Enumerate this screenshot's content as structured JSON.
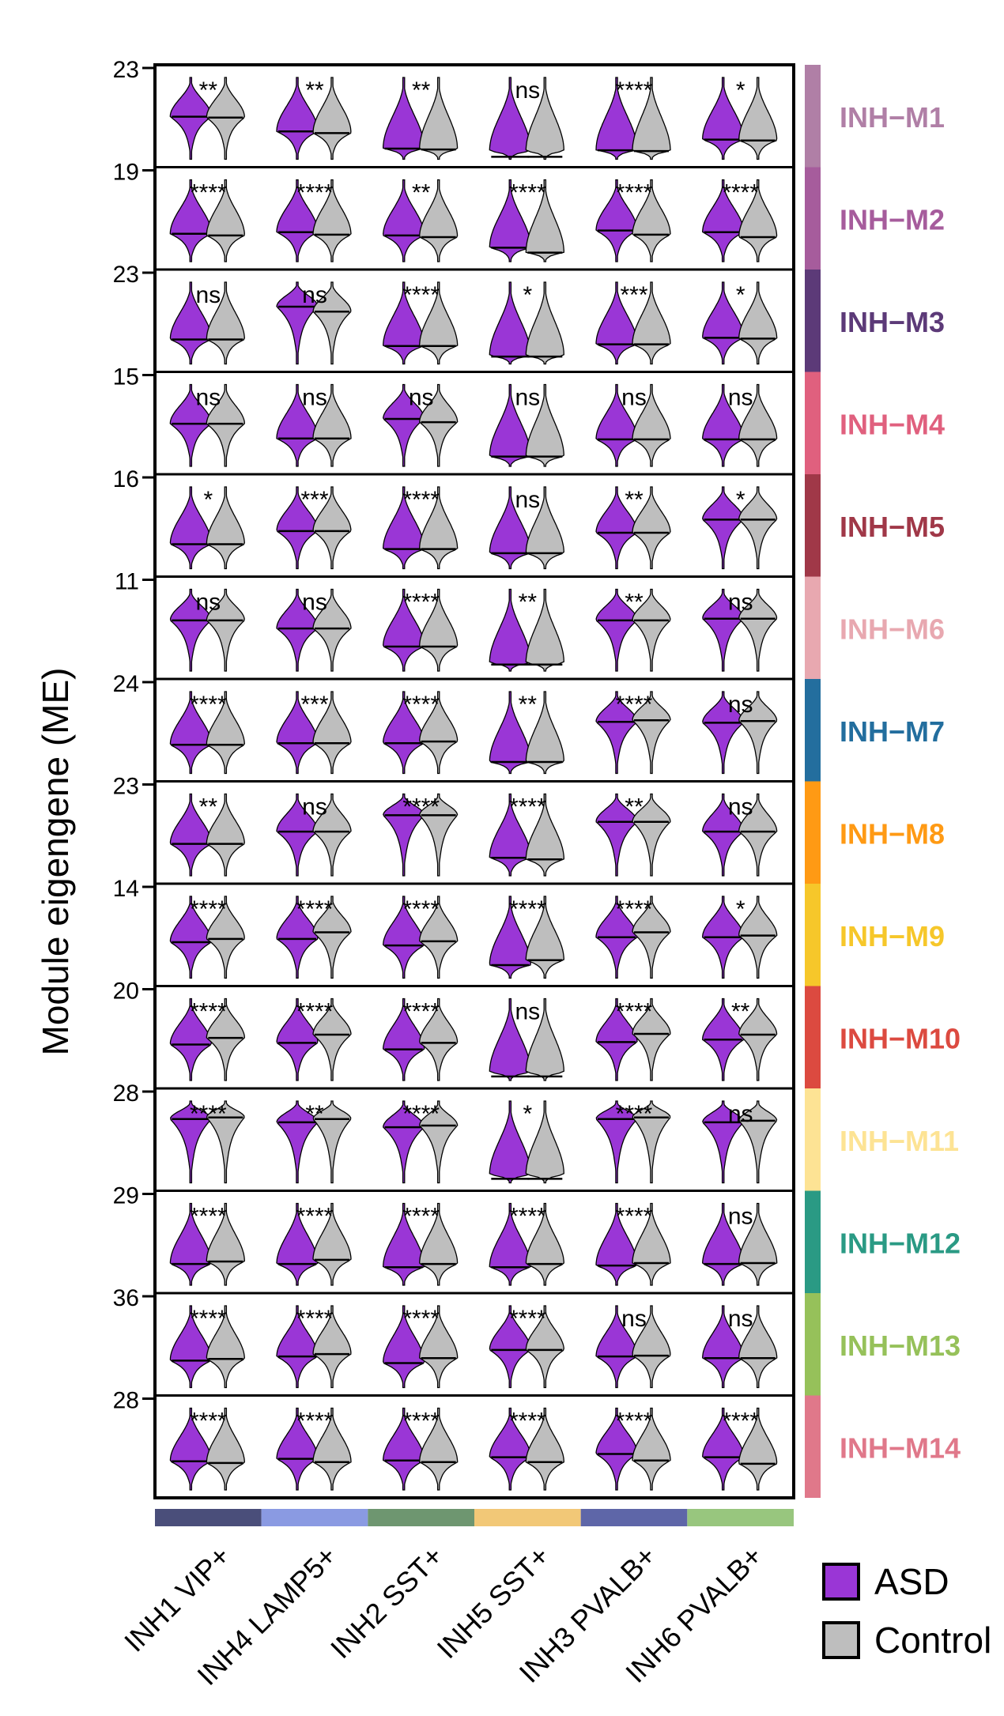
{
  "chart_data": {
    "type": "violin",
    "title": "",
    "ylabel": "Module eigengene (ME)",
    "xlabel": "",
    "categories": [
      "INH1 VIP+",
      "INH4 LAMP5+",
      "INH2 SST+",
      "INH5 SST+",
      "INH3 PVALB+",
      "INH6 PVALB+"
    ],
    "category_colors": [
      "#4a4e7a",
      "#8a9ae2",
      "#6e9670",
      "#f2c877",
      "#5e66a8",
      "#98c67e"
    ],
    "groups": [
      {
        "name": "ASD",
        "color": "#9a36d6"
      },
      {
        "name": "Control",
        "color": "#bebebe"
      }
    ],
    "modules": [
      {
        "name": "INH−M1",
        "color": "#b07fa6",
        "y_top_tick": "23",
        "sig": [
          "**",
          "**",
          "**",
          "ns",
          "****",
          "*"
        ],
        "median": [
          [
            0.52,
            0.51
          ],
          [
            0.34,
            0.32
          ],
          [
            0.13,
            0.12
          ],
          [
            0.03,
            0.03
          ],
          [
            0.11,
            0.1
          ],
          [
            0.24,
            0.23
          ]
        ]
      },
      {
        "name": "INH−M2",
        "color": "#a65c9c",
        "y_top_tick": "19",
        "sig": [
          "****",
          "****",
          "**",
          "****",
          "****",
          "****"
        ],
        "median": [
          [
            0.34,
            0.32
          ],
          [
            0.36,
            0.33
          ],
          [
            0.32,
            0.3
          ],
          [
            0.17,
            0.11
          ],
          [
            0.38,
            0.33
          ],
          [
            0.36,
            0.3
          ]
        ]
      },
      {
        "name": "INH−M3",
        "color": "#5c3a78",
        "y_top_tick": "23",
        "sig": [
          "ns",
          "ns",
          "****",
          "*",
          "***",
          "*"
        ],
        "median": [
          [
            0.3,
            0.3
          ],
          [
            0.7,
            0.64
          ],
          [
            0.22,
            0.22
          ],
          [
            0.09,
            0.09
          ],
          [
            0.24,
            0.24
          ],
          [
            0.32,
            0.31
          ]
        ]
      },
      {
        "name": "INH−M4",
        "color": "#e0607e",
        "y_top_tick": "15",
        "sig": [
          "ns",
          "ns",
          "ns",
          "ns",
          "ns",
          "ns"
        ],
        "median": [
          [
            0.52,
            0.52
          ],
          [
            0.34,
            0.34
          ],
          [
            0.58,
            0.54
          ],
          [
            0.12,
            0.12
          ],
          [
            0.33,
            0.33
          ],
          [
            0.33,
            0.33
          ]
        ]
      },
      {
        "name": "INH−M5",
        "color": "#a03848",
        "y_top_tick": "16",
        "sig": [
          "*",
          "***",
          "****",
          "ns",
          "**",
          "*"
        ],
        "median": [
          [
            0.3,
            0.3
          ],
          [
            0.46,
            0.46
          ],
          [
            0.24,
            0.24
          ],
          [
            0.19,
            0.19
          ],
          [
            0.44,
            0.44
          ],
          [
            0.6,
            0.6
          ]
        ]
      },
      {
        "name": "INH−M6",
        "color": "#e8a8b0",
        "y_top_tick": "11",
        "sig": [
          "ns",
          "ns",
          "****",
          "**",
          "**",
          "ns"
        ],
        "median": [
          [
            0.62,
            0.62
          ],
          [
            0.52,
            0.52
          ],
          [
            0.3,
            0.3
          ],
          [
            0.08,
            0.08
          ],
          [
            0.62,
            0.62
          ],
          [
            0.64,
            0.64
          ]
        ]
      },
      {
        "name": "INH−M7",
        "color": "#236e9e",
        "y_top_tick": "24",
        "sig": [
          "****",
          "***",
          "****",
          "**",
          "****",
          "ns"
        ],
        "median": [
          [
            0.35,
            0.35
          ],
          [
            0.37,
            0.37
          ],
          [
            0.37,
            0.39
          ],
          [
            0.14,
            0.14
          ],
          [
            0.63,
            0.65
          ],
          [
            0.62,
            0.64
          ]
        ]
      },
      {
        "name": "INH−M8",
        "color": "#ff9a14",
        "y_top_tick": "23",
        "sig": [
          "**",
          "ns",
          "****",
          "****",
          "**",
          "ns"
        ],
        "median": [
          [
            0.39,
            0.39
          ],
          [
            0.54,
            0.54
          ],
          [
            0.74,
            0.74
          ],
          [
            0.22,
            0.2
          ],
          [
            0.66,
            0.66
          ],
          [
            0.54,
            0.54
          ]
        ]
      },
      {
        "name": "INH−M9",
        "color": "#f6c72a",
        "y_top_tick": "14",
        "sig": [
          "****",
          "****",
          "****",
          "****",
          "****",
          "*"
        ],
        "median": [
          [
            0.44,
            0.48
          ],
          [
            0.48,
            0.56
          ],
          [
            0.4,
            0.45
          ],
          [
            0.16,
            0.22
          ],
          [
            0.5,
            0.56
          ],
          [
            0.5,
            0.52
          ]
        ]
      },
      {
        "name": "INH−M10",
        "color": "#dc4a40",
        "y_top_tick": "20",
        "sig": [
          "****",
          "****",
          "****",
          "ns",
          "****",
          "**"
        ],
        "median": [
          [
            0.44,
            0.52
          ],
          [
            0.46,
            0.56
          ],
          [
            0.38,
            0.46
          ],
          [
            0.05,
            0.05
          ],
          [
            0.47,
            0.57
          ],
          [
            0.5,
            0.56
          ]
        ]
      },
      {
        "name": "INH−M11",
        "color": "#fde394",
        "y_top_tick": "28",
        "sig": [
          "****",
          "**",
          "****",
          "*",
          "****",
          "ns"
        ],
        "median": [
          [
            0.78,
            0.8
          ],
          [
            0.74,
            0.78
          ],
          [
            0.68,
            0.7
          ],
          [
            0.05,
            0.05
          ],
          [
            0.78,
            0.8
          ],
          [
            0.74,
            0.76
          ]
        ]
      },
      {
        "name": "INH−M12",
        "color": "#2a9a84",
        "y_top_tick": "29",
        "sig": [
          "****",
          "****",
          "****",
          "****",
          "****",
          "ns"
        ],
        "median": [
          [
            0.26,
            0.29
          ],
          [
            0.26,
            0.31
          ],
          [
            0.22,
            0.26
          ],
          [
            0.22,
            0.26
          ],
          [
            0.24,
            0.27
          ],
          [
            0.26,
            0.27
          ]
        ]
      },
      {
        "name": "INH−M13",
        "color": "#96c15a",
        "y_top_tick": "36",
        "sig": [
          "****",
          "****",
          "****",
          "****",
          "ns",
          "ns"
        ],
        "median": [
          [
            0.33,
            0.35
          ],
          [
            0.38,
            0.41
          ],
          [
            0.3,
            0.36
          ],
          [
            0.46,
            0.46
          ],
          [
            0.38,
            0.39
          ],
          [
            0.36,
            0.36
          ]
        ]
      },
      {
        "name": "INH−M14",
        "color": "#e0788a",
        "y_top_tick": "28",
        "sig": [
          "****",
          "****",
          "****",
          "****",
          "****",
          "****"
        ],
        "median": [
          [
            0.35,
            0.33
          ],
          [
            0.38,
            0.34
          ],
          [
            0.36,
            0.34
          ],
          [
            0.4,
            0.34
          ],
          [
            0.44,
            0.36
          ],
          [
            0.4,
            0.32
          ]
        ]
      }
    ],
    "legend": {
      "position": "bottom-right",
      "entries": [
        "ASD",
        "Control"
      ]
    }
  }
}
